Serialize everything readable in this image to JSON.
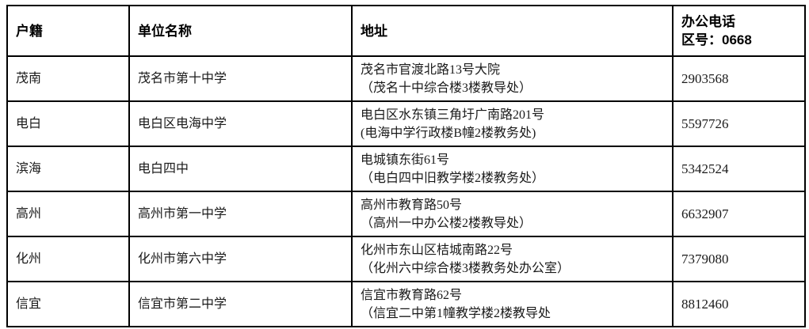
{
  "table": {
    "header": {
      "district": "户籍",
      "school": "单位名称",
      "address": "地址",
      "phone_line1": "办公电话",
      "phone_line2": "区号：0668"
    },
    "rows": [
      {
        "district": "茂南",
        "school": "茂名市第十中学",
        "address_line1": "茂名市官渡北路13号大院",
        "address_line2": "（茂名十中综合楼3楼教导处）",
        "phone": "2903568"
      },
      {
        "district": "电白",
        "school": "电白区电海中学",
        "address_line1": "电白区水东镇三角圩广南路201号",
        "address_line2": "(电海中学行政楼B幢2楼教务处)",
        "phone": "5597726"
      },
      {
        "district": "滨海",
        "school": "电白四中",
        "address_line1": "电城镇东街61号",
        "address_line2": "（电白四中旧教学楼2楼教务处）",
        "phone": "5342524"
      },
      {
        "district": "高州",
        "school": "高州市第一中学",
        "address_line1": "高州市教育路50号",
        "address_line2": "（高州一中办公楼2楼教导处）",
        "phone": "6632907"
      },
      {
        "district": "化州",
        "school": "化州市第六中学",
        "address_line1": "化州市东山区桔城南路22号",
        "address_line2": "（化州六中综合楼3楼教务处办公室）",
        "phone": "7379080"
      },
      {
        "district": "信宜",
        "school": "信宜市第二中学",
        "address_line1": "信宜市教育路62号",
        "address_line2": "（信宜二中第1幢教学楼2楼教导处",
        "phone": "8812460"
      }
    ],
    "colors": {
      "border": "#000000",
      "text": "#1a1a1a",
      "background": "#ffffff"
    }
  }
}
